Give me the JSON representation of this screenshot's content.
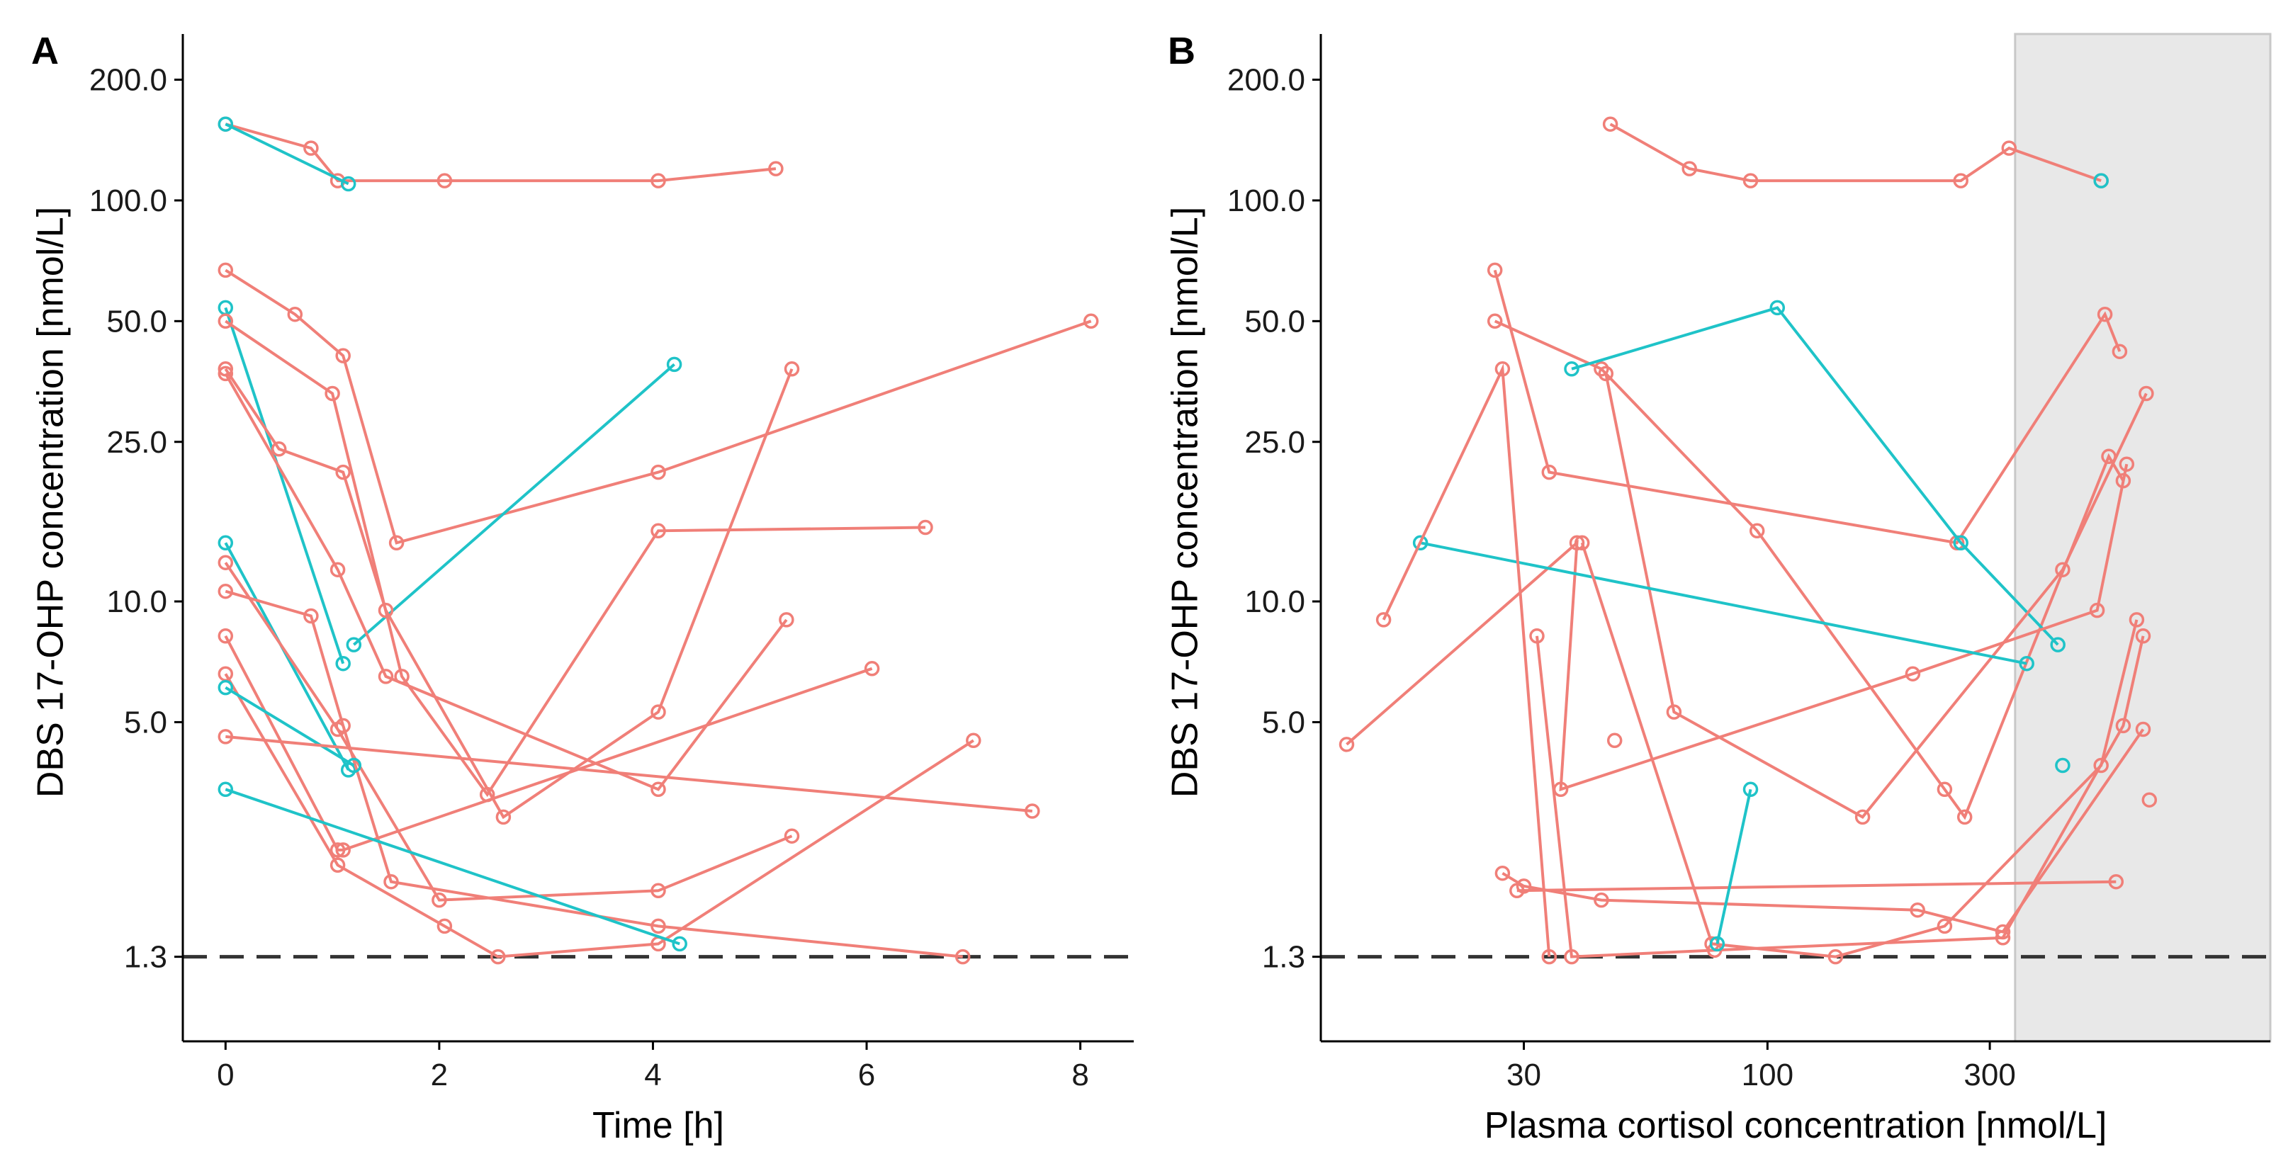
{
  "colors": {
    "group_a": "#f07f78",
    "group_b": "#1fc3c8"
  },
  "chart_data": [
    {
      "panel": "A",
      "type": "line",
      "xlabel": "Time [h]",
      "ylabel": "DBS 17-OHP concentration [nmol/L]",
      "xscale": "linear",
      "yscale": "log",
      "xlim": [
        -0.4,
        8.5
      ],
      "ylim": [
        0.8,
        260
      ],
      "xticks": [
        0,
        2,
        4,
        6,
        8
      ],
      "xtick_labels": [
        "0",
        "2",
        "4",
        "6",
        "8"
      ],
      "yticks": [
        1.3,
        5,
        10,
        25,
        50,
        100,
        200
      ],
      "ytick_labels": [
        "1.3",
        "5.0",
        "10.0",
        "25.0",
        "50.0",
        "100.0",
        "200.0"
      ],
      "reference_line": {
        "y": 1.3,
        "style": "dashed"
      },
      "series": [
        {
          "group": "group_a",
          "points": [
            [
              0,
              155
            ],
            [
              0.8,
              135
            ],
            [
              1.05,
              112
            ],
            [
              2.05,
              112
            ],
            [
              4.05,
              112
            ],
            [
              5.15,
              120
            ]
          ]
        },
        {
          "group": "group_b",
          "points": [
            [
              0,
              155
            ],
            [
              1.15,
              110
            ]
          ]
        },
        {
          "group": "group_a",
          "points": [
            [
              0,
              67
            ],
            [
              0.65,
              52
            ],
            [
              1.1,
              41
            ],
            [
              1.6,
              14
            ],
            [
              4.05,
              21
            ],
            [
              8.1,
              50
            ]
          ]
        },
        {
          "group": "group_b",
          "points": [
            [
              0,
              54
            ],
            [
              1.1,
              7
            ]
          ]
        },
        {
          "group": "group_b",
          "points": [
            [
              1.2,
              7.8
            ],
            [
              4.2,
              39
            ]
          ]
        },
        {
          "group": "group_a",
          "points": [
            [
              0,
              50
            ],
            [
              1.0,
              33
            ],
            [
              1.65,
              6.5
            ],
            [
              2.45,
              3.3
            ],
            [
              4.05,
              15
            ],
            [
              6.55,
              15.3
            ]
          ]
        },
        {
          "group": "group_a",
          "points": [
            [
              0,
              38
            ],
            [
              0.5,
              24
            ],
            [
              1.1,
              21
            ],
            [
              1.5,
              9.5
            ],
            [
              2.6,
              2.9
            ],
            [
              4.05,
              5.3
            ],
            [
              5.3,
              38
            ]
          ]
        },
        {
          "group": "group_a",
          "points": [
            [
              0,
              37
            ],
            [
              1.05,
              12
            ],
            [
              1.5,
              6.5
            ],
            [
              4.05,
              3.4
            ],
            [
              5.25,
              9
            ]
          ]
        },
        {
          "group": "group_b",
          "points": [
            [
              0,
              14
            ],
            [
              1.15,
              3.8
            ]
          ]
        },
        {
          "group": "group_a",
          "points": [
            [
              0,
              12.5
            ],
            [
              1.05,
              4.8
            ],
            [
              2.0,
              1.8
            ],
            [
              4.05,
              1.9
            ],
            [
              5.3,
              2.6
            ]
          ]
        },
        {
          "group": "group_a",
          "points": [
            [
              0,
              10.6
            ],
            [
              0.8,
              9.2
            ],
            [
              1.1,
              4.9
            ],
            [
              1.55,
              2.0
            ],
            [
              4.05,
              1.55
            ],
            [
              6.9,
              1.3
            ]
          ]
        },
        {
          "group": "group_a",
          "points": [
            [
              0,
              8.2
            ],
            [
              1.05,
              2.4
            ],
            [
              1.1,
              2.4
            ],
            [
              6.05,
              6.8
            ]
          ]
        },
        {
          "group": "group_a",
          "points": [
            [
              0,
              6.6
            ],
            [
              1.05,
              2.2
            ],
            [
              2.05,
              1.55
            ],
            [
              2.55,
              1.3
            ],
            [
              4.05,
              1.4
            ],
            [
              7.0,
              4.5
            ]
          ]
        },
        {
          "group": "group_b",
          "points": [
            [
              0,
              6.1
            ],
            [
              1.2,
              3.9
            ]
          ]
        },
        {
          "group": "group_a",
          "points": [
            [
              0,
              4.6
            ],
            [
              7.55,
              3.0
            ]
          ]
        },
        {
          "group": "group_b",
          "points": [
            [
              0,
              3.4
            ],
            [
              4.25,
              1.4
            ]
          ]
        }
      ]
    },
    {
      "panel": "B",
      "type": "line",
      "xlabel": "Plasma cortisol concentration [nmol/L]",
      "ylabel": "DBS 17-OHP concentration [nmol/L]",
      "xscale": "log",
      "yscale": "log",
      "xlim": [
        11,
        1200
      ],
      "ylim": [
        0.8,
        260
      ],
      "xticks": [
        30,
        100,
        300
      ],
      "xtick_labels": [
        "30",
        "100",
        "300"
      ],
      "yticks": [
        1.3,
        5,
        10,
        25,
        50,
        100,
        200
      ],
      "ytick_labels": [
        "1.3",
        "5.0",
        "10.0",
        "25.0",
        "50.0",
        "100.0",
        "200.0"
      ],
      "reference_line": {
        "y": 1.3,
        "style": "dashed"
      },
      "shaded_region": {
        "x_from": 340,
        "x_to": 1200
      },
      "series": [
        {
          "group": "group_a",
          "points": [
            [
              46,
              155
            ],
            [
              68,
              120
            ],
            [
              92,
              112
            ],
            [
              260,
              112
            ],
            [
              330,
              135
            ],
            [
              520,
              112
            ]
          ]
        },
        {
          "group": "group_b",
          "points": [
            [
              520,
              112
            ]
          ]
        },
        {
          "group": "group_a",
          "points": [
            [
              26,
              67
            ],
            [
              34,
              21
            ],
            [
              255,
              14
            ],
            [
              530,
              52
            ],
            [
              570,
              42
            ]
          ]
        },
        {
          "group": "group_a",
          "points": [
            [
              26,
              50
            ],
            [
              44,
              38
            ],
            [
              95,
              15
            ],
            [
              240,
              3.4
            ],
            [
              265,
              2.9
            ],
            [
              540,
              23
            ],
            [
              580,
              20
            ]
          ]
        },
        {
          "group": "group_b",
          "points": [
            [
              38,
              38
            ],
            [
              105,
              54
            ],
            [
              260,
              14
            ],
            [
              420,
              7.8
            ]
          ]
        },
        {
          "group": "group_a",
          "points": [
            [
              45,
              37
            ],
            [
              63,
              5.3
            ],
            [
              160,
              2.9
            ],
            [
              430,
              12
            ],
            [
              650,
              33
            ]
          ]
        },
        {
          "group": "group_a",
          "points": [
            [
              12.5,
              4.4
            ],
            [
              39,
              14
            ],
            [
              36,
              3.4
            ],
            [
              205,
              6.6
            ],
            [
              510,
              9.5
            ],
            [
              590,
              22
            ]
          ]
        },
        {
          "group": "group_b",
          "points": [
            [
              18,
              14
            ],
            [
              360,
              7
            ]
          ]
        },
        {
          "group": "group_a",
          "points": [
            [
              15,
              9
            ],
            [
              27,
              38
            ],
            [
              34,
              1.3
            ]
          ]
        },
        {
          "group": "group_a",
          "points": [
            [
              32,
              8.2
            ],
            [
              38,
              1.3
            ],
            [
              77,
              1.35
            ],
            [
              320,
              1.45
            ],
            [
              580,
              4.9
            ],
            [
              640,
              8.2
            ]
          ]
        },
        {
          "group": "group_a",
          "points": [
            [
              40,
              14
            ],
            [
              76,
              1.4
            ],
            [
              140,
              1.3
            ],
            [
              240,
              1.55
            ],
            [
              520,
              3.9
            ],
            [
              620,
              9
            ]
          ]
        },
        {
          "group": "group_a",
          "points": [
            [
              27,
              2.1
            ],
            [
              30,
              1.95
            ],
            [
              44,
              1.8
            ],
            [
              210,
              1.7
            ],
            [
              320,
              1.5
            ],
            [
              640,
              4.8
            ]
          ]
        },
        {
          "group": "group_a",
          "points": [
            [
              29,
              1.9
            ],
            [
              560,
              2.0
            ]
          ]
        },
        {
          "group": "group_b",
          "points": [
            [
              78,
              1.4
            ],
            [
              92,
              3.4
            ]
          ]
        },
        {
          "group": "group_b",
          "points": [
            [
              430,
              3.9
            ]
          ]
        },
        {
          "group": "group_a",
          "points": [
            [
              47,
              4.5
            ]
          ]
        },
        {
          "group": "group_a",
          "points": [
            [
              660,
              3.2
            ]
          ]
        }
      ]
    }
  ]
}
